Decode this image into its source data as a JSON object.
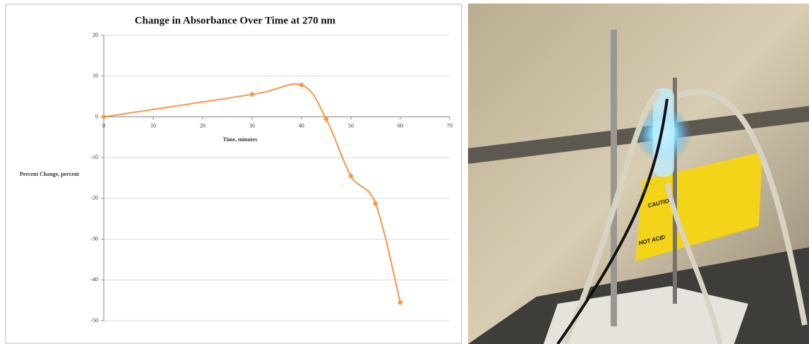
{
  "chart_data": {
    "type": "line",
    "title": "Change in Absorbance Over Time at 270 nm",
    "x_label": "Time, minutes",
    "y_label": "Percent Change, percent",
    "x": [
      0,
      30,
      40,
      45,
      50,
      55,
      60
    ],
    "values": [
      0,
      5.5,
      7.8,
      -0.5,
      -14.5,
      -21.3,
      -45.5
    ],
    "color": "#f79646",
    "xlim": [
      0,
      70
    ],
    "xticks": [
      0,
      10,
      20,
      30,
      40,
      50,
      60,
      70
    ],
    "ylim": [
      -50,
      20
    ],
    "yticks": [
      -50,
      -40,
      -30,
      -20,
      -10,
      0,
      10,
      20
    ],
    "grid": true,
    "smooth": true
  },
  "photo": {
    "sign_lines": [
      "CAUTION",
      "HOT ACID"
    ]
  }
}
